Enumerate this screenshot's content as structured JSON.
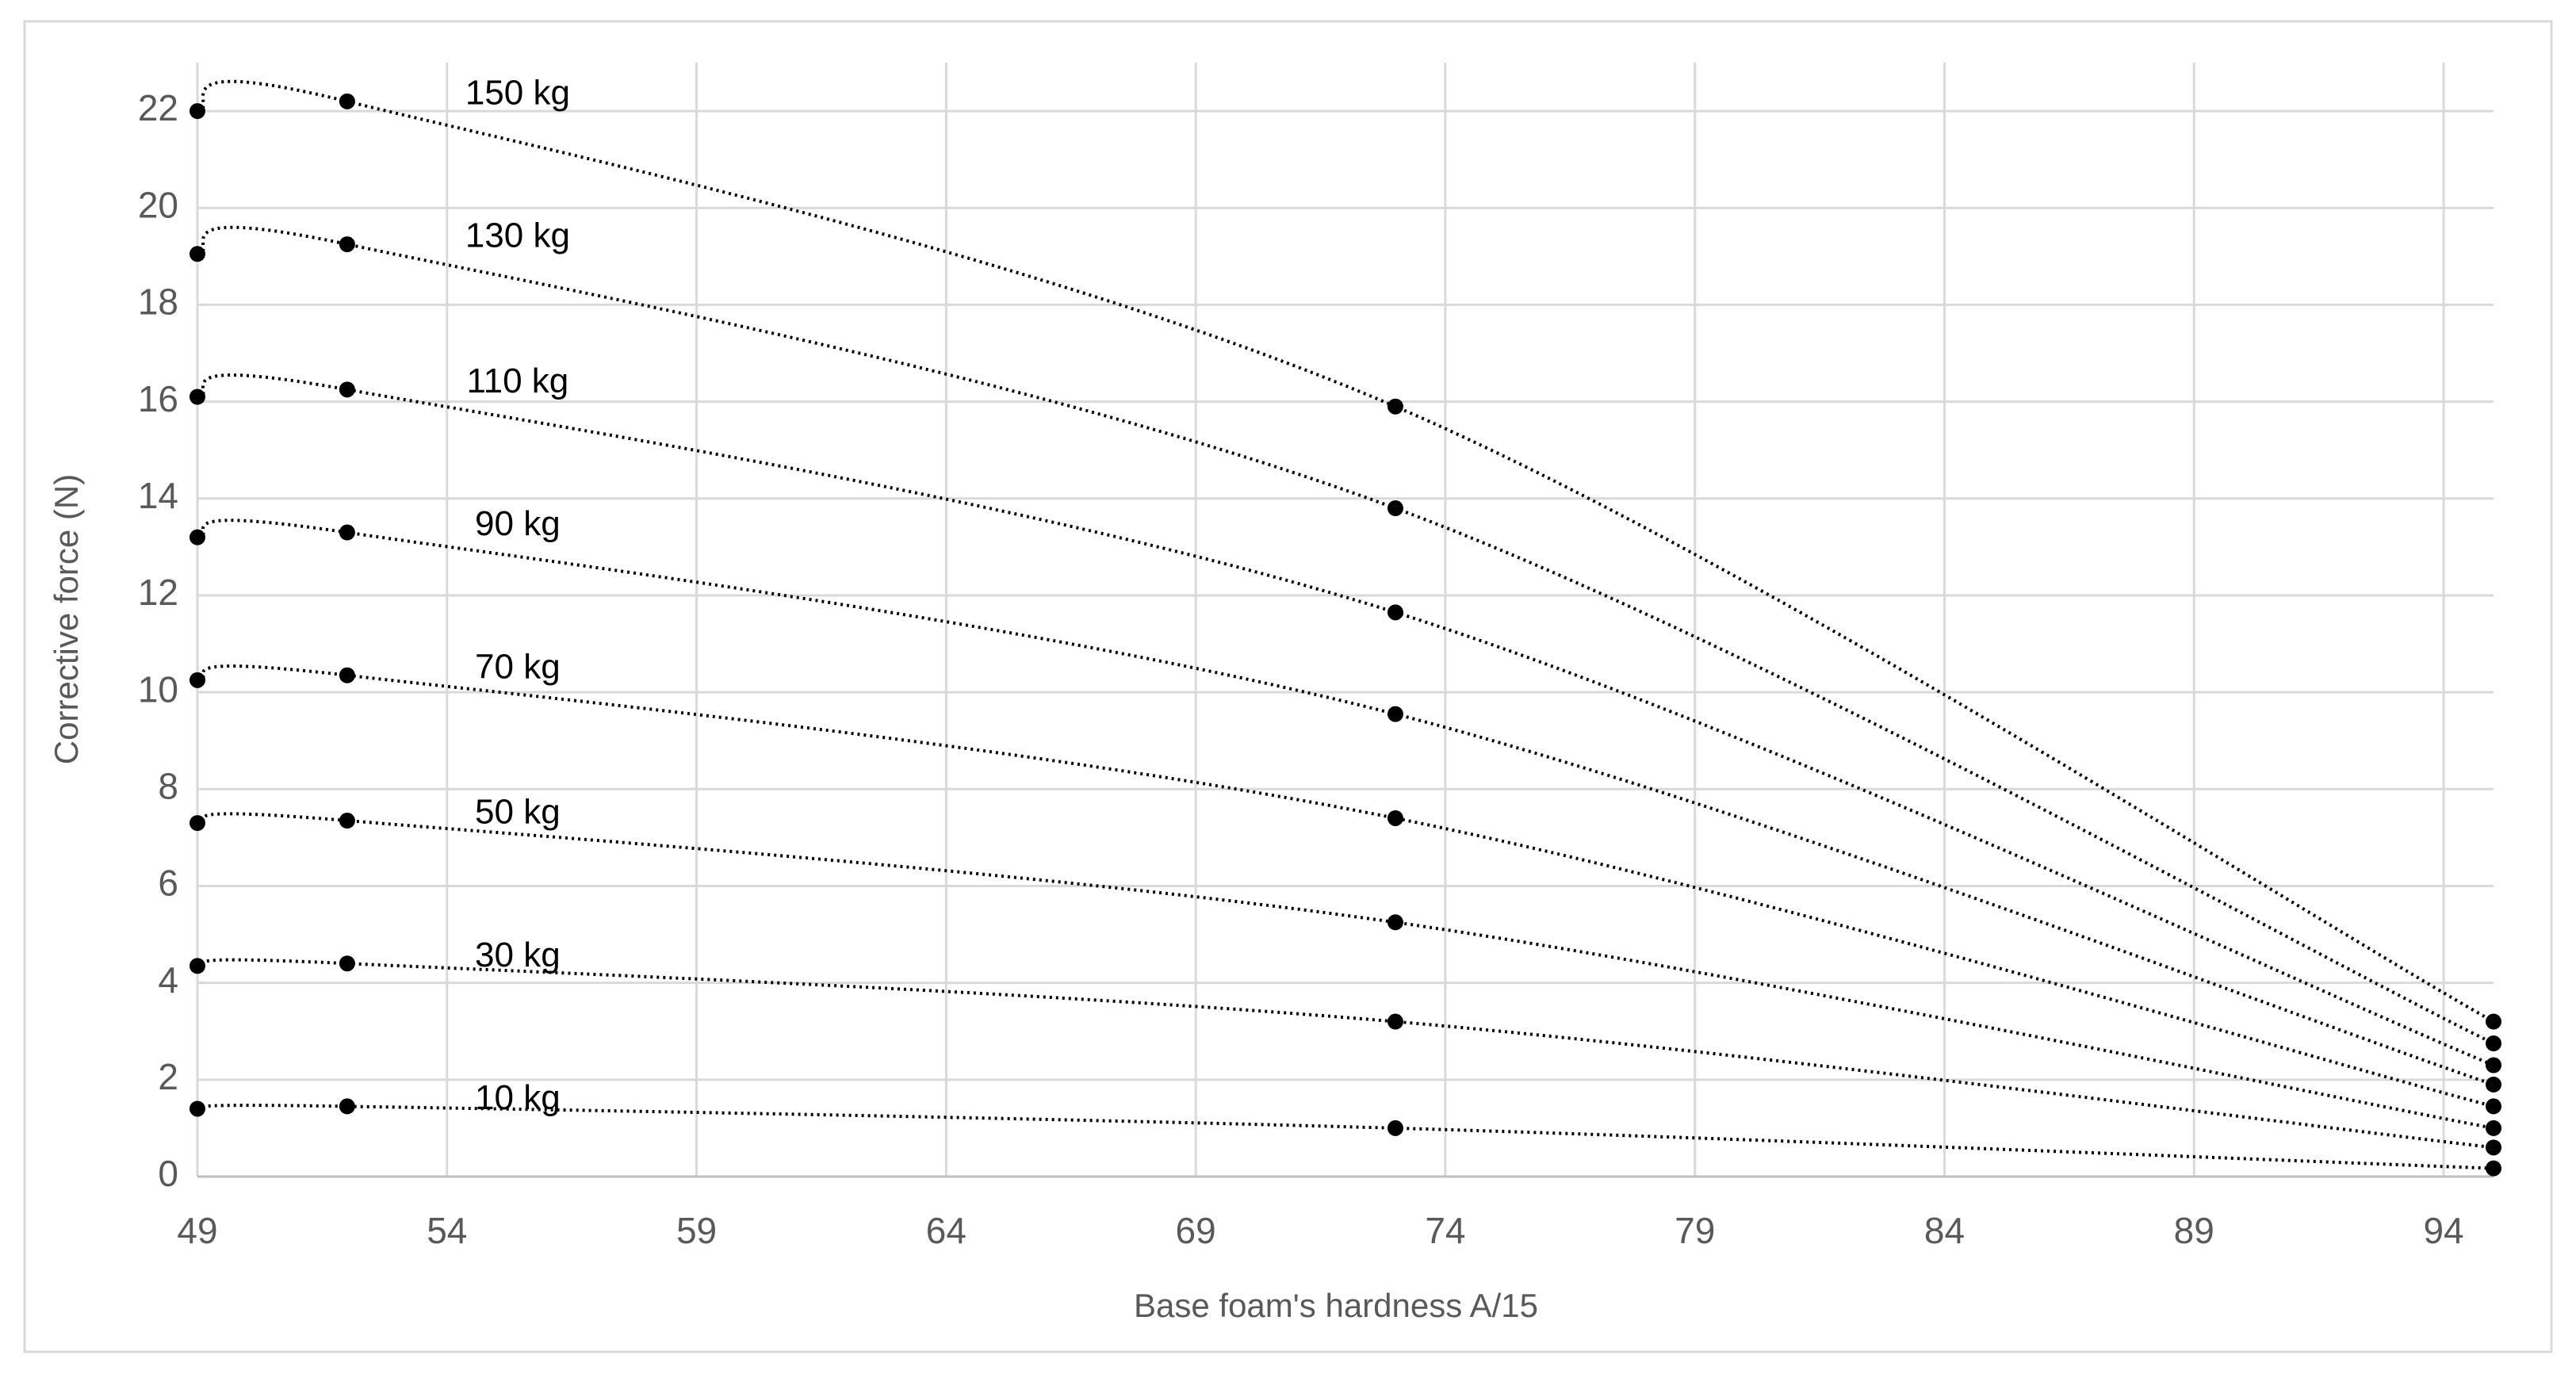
{
  "chart_data": {
    "type": "line",
    "x_label": "Base foam's hardness A/15",
    "y_label": "Corrective force (N)",
    "x": [
      49,
      52,
      73,
      95
    ],
    "series": [
      {
        "name": "150 kg",
        "color": "#000000",
        "values": [
          22.0,
          22.2,
          15.9,
          3.2
        ]
      },
      {
        "name": "130 kg",
        "color": "#000000",
        "values": [
          19.05,
          19.25,
          13.8,
          2.75
        ]
      },
      {
        "name": "110 kg",
        "color": "#000000",
        "values": [
          16.1,
          16.25,
          11.65,
          2.3
        ]
      },
      {
        "name": "90 kg",
        "color": "#000000",
        "values": [
          13.2,
          13.3,
          9.55,
          1.9
        ]
      },
      {
        "name": "70 kg",
        "color": "#000000",
        "values": [
          10.25,
          10.35,
          7.4,
          1.45
        ]
      },
      {
        "name": "50 kg",
        "color": "#000000",
        "values": [
          7.3,
          7.35,
          5.25,
          1.0
        ]
      },
      {
        "name": "30 kg",
        "color": "#000000",
        "values": [
          4.35,
          4.4,
          3.2,
          0.6
        ]
      },
      {
        "name": "10 kg",
        "color": "#000000",
        "values": [
          1.4,
          1.45,
          1.0,
          0.17
        ]
      }
    ],
    "xlim": [
      49,
      95
    ],
    "xticks": [
      49,
      54,
      59,
      64,
      69,
      74,
      79,
      84,
      89,
      94
    ],
    "ylim": [
      0,
      23
    ],
    "yticks": [
      0,
      2,
      4,
      6,
      8,
      10,
      12,
      14,
      16,
      18,
      20,
      22
    ],
    "grid": true,
    "smooth": true,
    "line_style": "dotted",
    "markers": true
  }
}
